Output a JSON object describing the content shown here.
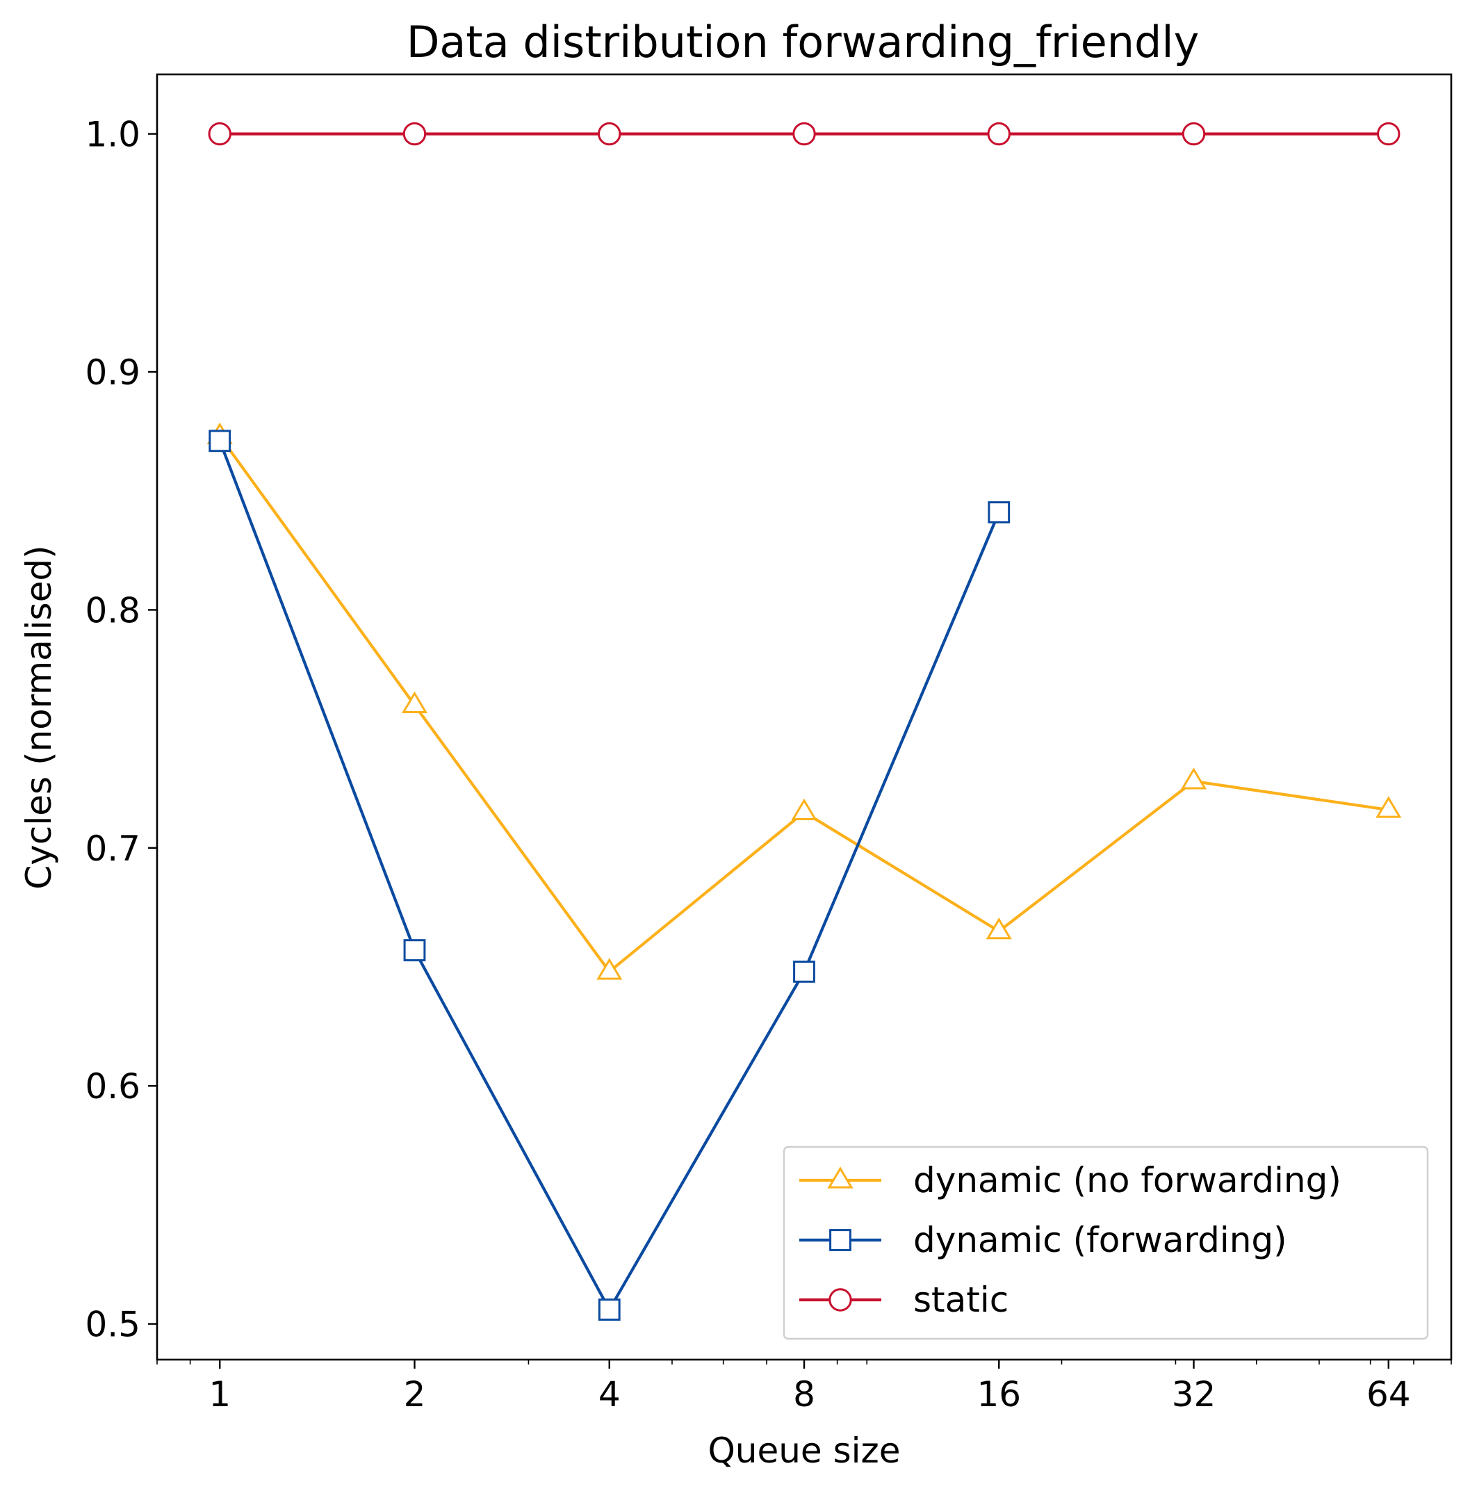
{
  "chart_data": {
    "type": "line",
    "title": "Data distribution forwarding_friendly",
    "xlabel": "Queue size",
    "ylabel": "Cycles (normalised)",
    "x_scale": "log2",
    "xlim": [
      0.8,
      80
    ],
    "ylim": [
      0.485,
      1.025
    ],
    "x_ticks": [
      1,
      2,
      4,
      8,
      16,
      32,
      64
    ],
    "x_tick_labels": [
      "1",
      "2",
      "4",
      "8",
      "16",
      "32",
      "64"
    ],
    "y_ticks": [
      0.5,
      0.6,
      0.7,
      0.8,
      0.9,
      1.0
    ],
    "y_tick_labels": [
      "0.5",
      "0.6",
      "0.7",
      "0.8",
      "0.9",
      "1.0"
    ],
    "grid": false,
    "legend_position": "lower-right",
    "series": [
      {
        "name": "dynamic (no forwarding)",
        "color": "#FCB01A",
        "marker": "triangle",
        "x": [
          1,
          2,
          4,
          8,
          16,
          32,
          64
        ],
        "values": [
          0.873,
          0.76,
          0.648,
          0.715,
          0.665,
          0.728,
          0.716
        ]
      },
      {
        "name": "dynamic (forwarding)",
        "color": "#0A4AA0",
        "marker": "square",
        "x": [
          1,
          2,
          4,
          8,
          16
        ],
        "values": [
          0.871,
          0.657,
          0.506,
          0.648,
          0.841
        ]
      },
      {
        "name": "static",
        "color": "#C8102E",
        "marker": "circle",
        "x": [
          1,
          2,
          4,
          8,
          16,
          32,
          64
        ],
        "values": [
          1.0,
          1.0,
          1.0,
          1.0,
          1.0,
          1.0,
          1.0
        ]
      }
    ]
  }
}
